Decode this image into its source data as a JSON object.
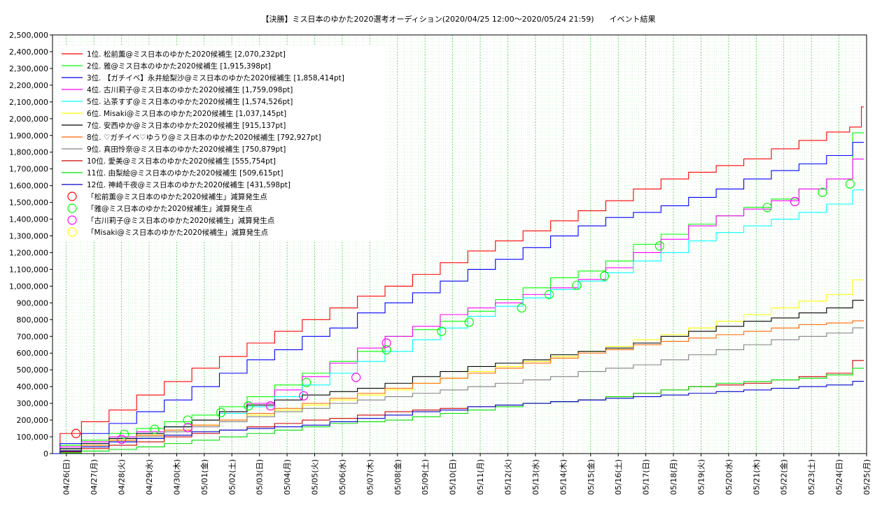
{
  "chart_data": {
    "type": "line",
    "title": "【決勝】ミス日本のゆかた2020選考オーディション(2020/04/25 12:00〜2020/05/24 21:59)　　イベント結果",
    "xlabel": "",
    "ylabel": "",
    "ylim": [
      0,
      2500000
    ],
    "y_ticks": [
      "0",
      "100,000",
      "200,000",
      "300,000",
      "400,000",
      "500,000",
      "600,000",
      "700,000",
      "800,000",
      "900,000",
      "1,000,000",
      "1,100,000",
      "1,200,000",
      "1,300,000",
      "1,400,000",
      "1,500,000",
      "1,600,000",
      "1,700,000",
      "1,800,000",
      "1,900,000",
      "2,000,000",
      "2,100,000",
      "2,200,000",
      "2,300,000",
      "2,400,000",
      "2,500,000"
    ],
    "x_ticks": [
      "04/26(日)",
      "04/27(月)",
      "04/28(火)",
      "04/29(水)",
      "04/30(木)",
      "05/01(金)",
      "05/02(土)",
      "05/03(日)",
      "05/04(月)",
      "05/05(火)",
      "05/06(水)",
      "05/07(木)",
      "05/08(金)",
      "05/09(土)",
      "05/10(日)",
      "05/11(月)",
      "05/12(火)",
      "05/13(水)",
      "05/14(木)",
      "05/15(金)",
      "05/16(土)",
      "05/17(日)",
      "05/18(月)",
      "05/19(火)",
      "05/20(水)",
      "05/21(木)",
      "05/22(金)",
      "05/23(土)",
      "05/24(日)",
      "05/25(月)"
    ],
    "x_range_days": [
      -0.5,
      29.0
    ],
    "grid": true,
    "legend_position": "top-left",
    "series": [
      {
        "name": "1位. 松前薫@ミス日本のゆかた2020候補生 [2,070,232pt]",
        "color": "#ff0000",
        "x": [
          -0.5,
          0,
          1,
          2,
          3,
          4,
          5,
          6,
          7,
          8,
          9,
          10,
          11,
          12,
          13,
          14,
          15,
          16,
          17,
          18,
          19,
          20,
          21,
          22,
          23,
          24,
          25,
          26,
          27,
          28,
          28.7,
          28.9
        ],
        "y": [
          0,
          120000,
          190000,
          260000,
          350000,
          430000,
          510000,
          580000,
          660000,
          730000,
          800000,
          870000,
          940000,
          1000000,
          1070000,
          1140000,
          1210000,
          1270000,
          1330000,
          1390000,
          1450000,
          1510000,
          1580000,
          1640000,
          1680000,
          1720000,
          1760000,
          1820000,
          1870000,
          1920000,
          1950000,
          2070232
        ]
      },
      {
        "name": "2位. 雅@ミス日本のゆかた2020候補生 [1,915,398pt]",
        "color": "#00ff00",
        "x": [
          -0.5,
          0,
          1,
          2,
          3,
          4,
          5,
          6,
          7,
          8,
          9,
          10,
          11,
          12,
          13,
          14,
          15,
          16,
          17,
          18,
          19,
          20,
          21,
          22,
          23,
          24,
          25,
          26,
          27,
          28,
          28.9
        ],
        "y": [
          0,
          50000,
          80000,
          120000,
          150000,
          190000,
          230000,
          280000,
          340000,
          410000,
          480000,
          550000,
          610000,
          700000,
          740000,
          790000,
          850000,
          920000,
          990000,
          1050000,
          1090000,
          1150000,
          1250000,
          1310000,
          1370000,
          1420000,
          1470000,
          1520000,
          1580000,
          1640000,
          1915398
        ]
      },
      {
        "name": "3位. 【ガチイベ】永井絵梨沙@ミス日本のゆかた2020候補生 [1,858,414pt]",
        "color": "#0000ff",
        "x": [
          -0.5,
          0,
          1,
          2,
          3,
          4,
          5,
          6,
          7,
          8,
          9,
          10,
          11,
          12,
          13,
          14,
          15,
          16,
          17,
          18,
          19,
          20,
          21,
          22,
          23,
          24,
          25,
          26,
          27,
          28,
          28.9
        ],
        "y": [
          0,
          60000,
          120000,
          180000,
          250000,
          320000,
          400000,
          480000,
          560000,
          620000,
          700000,
          750000,
          840000,
          900000,
          960000,
          1030000,
          1100000,
          1160000,
          1230000,
          1300000,
          1360000,
          1410000,
          1440000,
          1480000,
          1530000,
          1580000,
          1640000,
          1690000,
          1730000,
          1780000,
          1858414
        ]
      },
      {
        "name": "4位. 古川莉子@ミス日本のゆかた2020候補生 [1,759,098pt]",
        "color": "#ff00ff",
        "x": [
          -0.5,
          0,
          1,
          2,
          3,
          4,
          5,
          6,
          7,
          8,
          9,
          10,
          11,
          12,
          13,
          14,
          15,
          16,
          17,
          18,
          19,
          20,
          21,
          22,
          23,
          24,
          25,
          26,
          27,
          28,
          28.9
        ],
        "y": [
          0,
          40000,
          70000,
          100000,
          130000,
          160000,
          200000,
          250000,
          300000,
          380000,
          460000,
          540000,
          630000,
          700000,
          760000,
          830000,
          870000,
          900000,
          950000,
          990000,
          1040000,
          1110000,
          1200000,
          1280000,
          1360000,
          1420000,
          1460000,
          1510000,
          1580000,
          1640000,
          1759098
        ]
      },
      {
        "name": "5位. 込茶すず@ミス日本のゆかた2020候補生 [1,574,526pt]",
        "color": "#00ffff",
        "x": [
          -0.5,
          0,
          1,
          2,
          3,
          4,
          5,
          6,
          7,
          8,
          9,
          10,
          11,
          12,
          13,
          14,
          15,
          16,
          17,
          18,
          19,
          20,
          21,
          22,
          23,
          24,
          25,
          26,
          27,
          28,
          28.9
        ],
        "y": [
          0,
          30000,
          60000,
          90000,
          120000,
          160000,
          200000,
          240000,
          280000,
          340000,
          410000,
          480000,
          550000,
          610000,
          680000,
          750000,
          820000,
          880000,
          930000,
          980000,
          1030000,
          1080000,
          1150000,
          1200000,
          1270000,
          1320000,
          1360000,
          1400000,
          1440000,
          1490000,
          1574526
        ]
      },
      {
        "name": "6位. Misaki@ミス日本のゆかた2020候補生 [1,037,145pt]",
        "color": "#ffff00",
        "x": [
          -0.5,
          0,
          1,
          2,
          3,
          4,
          5,
          6,
          7,
          8,
          9,
          10,
          11,
          12,
          13,
          14,
          15,
          16,
          17,
          18,
          19,
          20,
          21,
          22,
          23,
          24,
          25,
          26,
          27,
          28,
          28.9
        ],
        "y": [
          0,
          20000,
          50000,
          80000,
          110000,
          140000,
          170000,
          200000,
          230000,
          260000,
          290000,
          320000,
          350000,
          380000,
          420000,
          450000,
          490000,
          520000,
          550000,
          580000,
          610000,
          640000,
          680000,
          710000,
          750000,
          790000,
          830000,
          870000,
          910000,
          950000,
          1037145
        ]
      },
      {
        "name": "7位. 安西ゆか@ミス日本のゆかた2020候補生 [915,137pt]",
        "color": "#000000",
        "x": [
          -0.5,
          0,
          1,
          2,
          3,
          4,
          5,
          6,
          7,
          8,
          9,
          10,
          11,
          12,
          13,
          14,
          15,
          16,
          17,
          18,
          19,
          20,
          21,
          22,
          23,
          24,
          25,
          26,
          27,
          28,
          28.9
        ],
        "y": [
          0,
          30000,
          60000,
          90000,
          120000,
          160000,
          200000,
          250000,
          290000,
          320000,
          350000,
          370000,
          390000,
          420000,
          460000,
          490000,
          520000,
          540000,
          560000,
          590000,
          610000,
          630000,
          660000,
          700000,
          730000,
          760000,
          790000,
          810000,
          840000,
          870000,
          915137
        ]
      },
      {
        "name": "8位. ♡ガチイベ♡ゆうり@ミス日本のゆかた2020候補生 [792,927pt]",
        "color": "#ff6600",
        "x": [
          -0.5,
          0,
          1,
          2,
          3,
          4,
          5,
          6,
          7,
          8,
          9,
          10,
          11,
          12,
          13,
          14,
          15,
          16,
          17,
          18,
          19,
          20,
          21,
          22,
          23,
          24,
          25,
          26,
          27,
          28,
          28.9
        ],
        "y": [
          0,
          20000,
          50000,
          80000,
          110000,
          140000,
          170000,
          200000,
          240000,
          270000,
          300000,
          330000,
          360000,
          390000,
          420000,
          450000,
          480000,
          510000,
          540000,
          570000,
          600000,
          620000,
          650000,
          670000,
          690000,
          710000,
          730000,
          750000,
          770000,
          780000,
          792927
        ]
      },
      {
        "name": "9位. 真田怜奈@ミス日本のゆかた2020候補生 [750,879pt]",
        "color": "#808080",
        "x": [
          -0.5,
          0,
          1,
          2,
          3,
          4,
          5,
          6,
          7,
          8,
          9,
          10,
          11,
          12,
          13,
          14,
          15,
          16,
          17,
          18,
          19,
          20,
          21,
          22,
          23,
          24,
          25,
          26,
          27,
          28,
          28.9
        ],
        "y": [
          0,
          20000,
          40000,
          70000,
          100000,
          130000,
          160000,
          190000,
          220000,
          250000,
          270000,
          300000,
          320000,
          340000,
          360000,
          380000,
          400000,
          420000,
          440000,
          460000,
          490000,
          510000,
          530000,
          560000,
          590000,
          620000,
          650000,
          680000,
          700000,
          720000,
          750879
        ]
      },
      {
        "name": "10位. 愛美@ミス日本のゆかた2020候補生 [555,754pt]",
        "color": "#cc0000",
        "x": [
          -0.5,
          0,
          1,
          2,
          3,
          4,
          5,
          6,
          7,
          8,
          9,
          10,
          11,
          12,
          13,
          14,
          15,
          16,
          17,
          18,
          19,
          20,
          21,
          22,
          23,
          24,
          25,
          26,
          27,
          28,
          28.9
        ],
        "y": [
          0,
          10000,
          30000,
          50000,
          70000,
          100000,
          120000,
          140000,
          160000,
          180000,
          200000,
          210000,
          230000,
          250000,
          260000,
          270000,
          280000,
          290000,
          300000,
          310000,
          320000,
          340000,
          360000,
          380000,
          400000,
          410000,
          420000,
          440000,
          460000,
          480000,
          555754
        ]
      },
      {
        "name": "11位. 由梨絵@ミス日本のゆかた2020候補生 [509,615pt]",
        "color": "#00dd00",
        "x": [
          -0.5,
          0,
          1,
          2,
          3,
          4,
          5,
          6,
          7,
          8,
          9,
          10,
          11,
          12,
          13,
          14,
          15,
          16,
          17,
          18,
          19,
          20,
          21,
          22,
          23,
          24,
          25,
          26,
          27,
          28,
          28.9
        ],
        "y": [
          0,
          5000,
          15000,
          25000,
          40000,
          60000,
          80000,
          100000,
          120000,
          140000,
          160000,
          180000,
          190000,
          200000,
          220000,
          240000,
          260000,
          280000,
          300000,
          310000,
          320000,
          340000,
          360000,
          380000,
          400000,
          420000,
          430000,
          440000,
          450000,
          470000,
          509615
        ]
      },
      {
        "name": "12位. 神崎千夜@ミス日本のゆかた2020候補生 [431,598pt]",
        "color": "#0000cc",
        "x": [
          -0.5,
          0,
          1,
          2,
          3,
          4,
          5,
          6,
          7,
          8,
          9,
          10,
          11,
          12,
          13,
          14,
          15,
          16,
          17,
          18,
          19,
          20,
          21,
          22,
          23,
          24,
          25,
          26,
          27,
          28,
          28.9
        ],
        "y": [
          0,
          15000,
          40000,
          70000,
          90000,
          110000,
          130000,
          140000,
          150000,
          160000,
          170000,
          190000,
          210000,
          230000,
          250000,
          260000,
          280000,
          290000,
          300000,
          310000,
          320000,
          330000,
          340000,
          350000,
          360000,
          370000,
          380000,
          390000,
          400000,
          410000,
          431598
        ]
      }
    ],
    "markers": [
      {
        "name": "「松前薫@ミス日本のゆかた2020候補生」減算発生点",
        "color": "#ff0000",
        "points": [
          [
            0.35,
            120000
          ]
        ]
      },
      {
        "name": "「雅@ミス日本のゆかた2020候補生」減算発生点",
        "color": "#00ff00",
        "points": [
          [
            2.1,
            115000
          ],
          [
            3.2,
            145000
          ],
          [
            4.4,
            200000
          ],
          [
            5.6,
            245000
          ],
          [
            6.6,
            285000
          ],
          [
            8.7,
            425000
          ],
          [
            11.6,
            620000
          ],
          [
            13.6,
            730000
          ],
          [
            14.6,
            785000
          ],
          [
            16.5,
            870000
          ],
          [
            17.5,
            950000
          ],
          [
            18.5,
            1005000
          ],
          [
            19.5,
            1060000
          ],
          [
            21.5,
            1240000
          ],
          [
            25.4,
            1470000
          ],
          [
            27.4,
            1560000
          ],
          [
            28.4,
            1610000
          ]
        ]
      },
      {
        "name": "「古川莉子@ミス日本のゆかた2020候補生」減算発生点",
        "color": "#ff00ff",
        "points": [
          [
            2.0,
            85000
          ],
          [
            4.4,
            155000
          ],
          [
            7.4,
            285000
          ],
          [
            8.6,
            345000
          ],
          [
            10.5,
            455000
          ],
          [
            11.6,
            660000
          ],
          [
            26.4,
            1505000
          ]
        ]
      },
      {
        "name": "「Misaki@ミス日本のゆかた2020候補生」減算発生点",
        "color": "#ffff00",
        "points": []
      }
    ]
  }
}
